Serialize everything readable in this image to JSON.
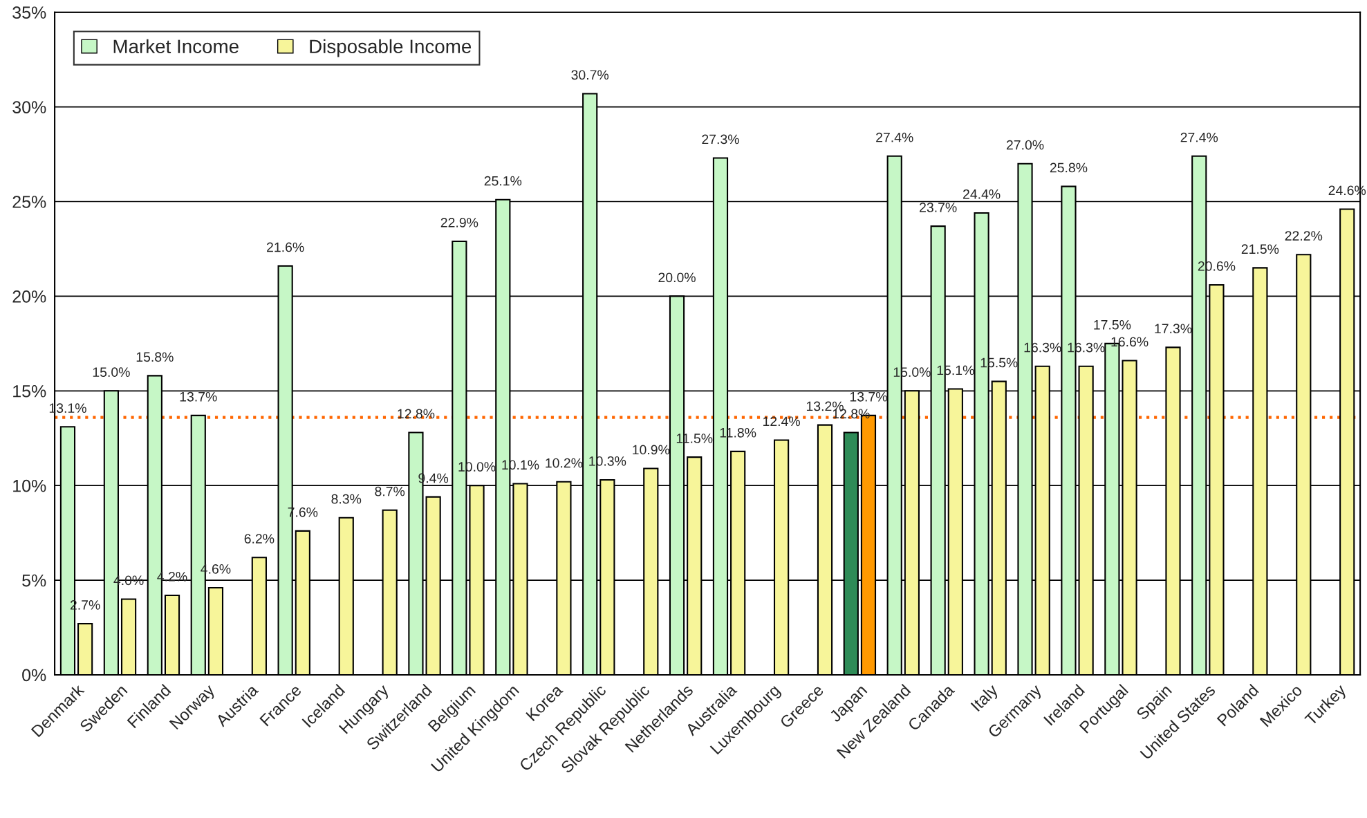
{
  "chart_data": {
    "type": "bar",
    "categories": [
      "Denmark",
      "Sweden",
      "Finland",
      "Norway",
      "Austria",
      "France",
      "Iceland",
      "Hungary",
      "Switzerland",
      "Belgium",
      "United Kingdom",
      "Korea",
      "Czech Republic",
      "Slovak Republic",
      "Netherlands",
      "Australia",
      "Luxembourg",
      "Greece",
      "Japan",
      "New Zealand",
      "Canada",
      "Italy",
      "Germany",
      "Ireland",
      "Portugal",
      "Spain",
      "United States",
      "Poland",
      "Mexico",
      "Turkey"
    ],
    "series": [
      {
        "name": "Market Income",
        "color": "#c6f7c6",
        "value_labels": [
          "13.1%",
          "15.0%",
          "15.8%",
          "13.7%",
          null,
          "21.6%",
          null,
          null,
          "12.8%",
          "22.9%",
          "25.1%",
          null,
          "30.7%",
          null,
          "20.0%",
          "27.3%",
          null,
          null,
          "12.8%",
          "27.4%",
          "23.7%",
          "24.4%",
          "27.0%",
          "25.8%",
          "17.5%",
          null,
          "27.4%",
          null,
          null,
          null
        ],
        "colors": [
          "#c6f7c6",
          "#c6f7c6",
          "#c6f7c6",
          "#c6f7c6",
          "#c6f7c6",
          "#c6f7c6",
          "#c6f7c6",
          "#c6f7c6",
          "#c6f7c6",
          "#c6f7c6",
          "#c6f7c6",
          "#c6f7c6",
          "#c6f7c6",
          "#c6f7c6",
          "#c6f7c6",
          "#c6f7c6",
          "#c6f7c6",
          "#c6f7c6",
          "#2e8b57",
          "#c6f7c6",
          "#c6f7c6",
          "#c6f7c6",
          "#c6f7c6",
          "#c6f7c6",
          "#c6f7c6",
          "#c6f7c6",
          "#c6f7c6",
          "#c6f7c6",
          "#c6f7c6",
          "#c6f7c6"
        ],
        "values": [
          13.1,
          15.0,
          15.8,
          13.7,
          null,
          21.6,
          null,
          null,
          12.8,
          22.9,
          25.1,
          null,
          30.7,
          null,
          20.0,
          27.3,
          null,
          null,
          12.8,
          27.4,
          23.7,
          24.4,
          27.0,
          25.8,
          17.5,
          null,
          27.4,
          null,
          null,
          null
        ]
      },
      {
        "name": "Disposable Income",
        "color": "#f7f59a",
        "value_labels": [
          "2.7%",
          "4.0%",
          "4.2%",
          "4.6%",
          "6.2%",
          "7.6%",
          "8.3%",
          "8.7%",
          "9.4%",
          "10.0%",
          "10.1%",
          "10.2%",
          "10.3%",
          "10.9%",
          "11.5%",
          "11.8%",
          "12.4%",
          "13.2%",
          "13.7%",
          "15.0%",
          "15.1%",
          "15.5%",
          "16.3%",
          "16.3%",
          "16.6%",
          "17.3%",
          "20.6%",
          "21.5%",
          "22.2%",
          "24.6%"
        ],
        "colors": [
          "#f7f59a",
          "#f7f59a",
          "#f7f59a",
          "#f7f59a",
          "#f7f59a",
          "#f7f59a",
          "#f7f59a",
          "#f7f59a",
          "#f7f59a",
          "#f7f59a",
          "#f7f59a",
          "#f7f59a",
          "#f7f59a",
          "#f7f59a",
          "#f7f59a",
          "#f7f59a",
          "#f7f59a",
          "#f7f59a",
          "#ff9900",
          "#f7f59a",
          "#f7f59a",
          "#f7f59a",
          "#f7f59a",
          "#f7f59a",
          "#f7f59a",
          "#f7f59a",
          "#f7f59a",
          "#f7f59a",
          "#f7f59a",
          "#f7f59a"
        ],
        "values": [
          2.7,
          4.0,
          4.2,
          4.6,
          6.2,
          7.6,
          8.3,
          8.7,
          9.4,
          10.0,
          10.1,
          10.2,
          10.3,
          10.9,
          11.5,
          11.8,
          12.4,
          13.2,
          13.7,
          15.0,
          15.1,
          15.5,
          16.3,
          16.3,
          16.6,
          17.3,
          20.6,
          21.5,
          22.2,
          24.6
        ]
      }
    ],
    "ylim": [
      0,
      35
    ],
    "yticks": [
      {
        "value": 0,
        "label": "0%"
      },
      {
        "value": 5,
        "label": "5%"
      },
      {
        "value": 10,
        "label": "10%"
      },
      {
        "value": 15,
        "label": "15%"
      },
      {
        "value": 20,
        "label": "20%"
      },
      {
        "value": 25,
        "label": "25%"
      },
      {
        "value": 30,
        "label": "30%"
      },
      {
        "value": 35,
        "label": "35%"
      }
    ],
    "ref_lines": [
      {
        "axis": "y",
        "value": 13.6,
        "color": "#ff6600",
        "line_style": "dotted"
      }
    ],
    "grid": "y",
    "legend": "top left"
  }
}
